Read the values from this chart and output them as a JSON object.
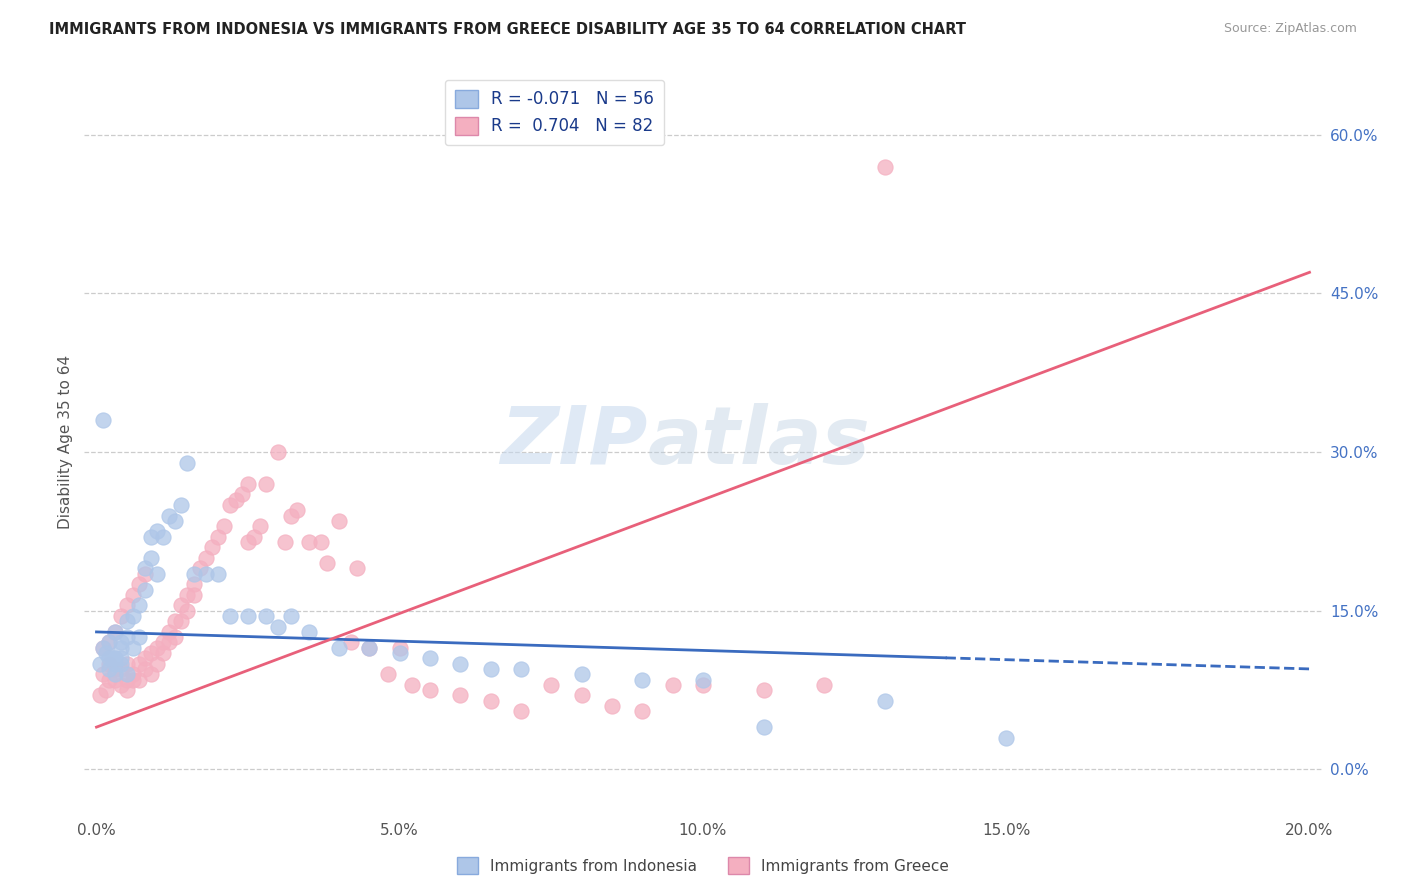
{
  "title": "IMMIGRANTS FROM INDONESIA VS IMMIGRANTS FROM GREECE DISABILITY AGE 35 TO 64 CORRELATION CHART",
  "source": "Source: ZipAtlas.com",
  "xlabel_ticks": [
    "0.0%",
    "5.0%",
    "10.0%",
    "15.0%",
    "20.0%"
  ],
  "xlabel_tick_vals": [
    0.0,
    0.05,
    0.1,
    0.15,
    0.2
  ],
  "ylabel_ticks": [
    "0.0%",
    "15.0%",
    "30.0%",
    "45.0%",
    "60.0%"
  ],
  "ylabel_tick_vals": [
    0.0,
    0.15,
    0.3,
    0.45,
    0.6
  ],
  "xlim": [
    -0.002,
    0.202
  ],
  "ylim": [
    -0.04,
    0.66
  ],
  "ylabel": "Disability Age 35 to 64",
  "legend_labels": [
    "Immigrants from Indonesia",
    "Immigrants from Greece"
  ],
  "blue_R": "-0.071",
  "blue_N": "56",
  "pink_R": "0.704",
  "pink_N": "82",
  "blue_color": "#aec6e8",
  "pink_color": "#f4afc0",
  "blue_line_color": "#3a6bbf",
  "pink_line_color": "#e8607a",
  "watermark_zip": "ZIP",
  "watermark_atlas": "atlas",
  "blue_line_x0": 0.0,
  "blue_line_y0": 0.13,
  "blue_line_x1": 0.2,
  "blue_line_y1": 0.095,
  "pink_line_x0": 0.0,
  "pink_line_y0": 0.04,
  "pink_line_x1": 0.2,
  "pink_line_y1": 0.47,
  "blue_scatter_x": [
    0.0005,
    0.001,
    0.0015,
    0.002,
    0.002,
    0.0025,
    0.003,
    0.003,
    0.003,
    0.004,
    0.004,
    0.004,
    0.005,
    0.005,
    0.005,
    0.006,
    0.006,
    0.007,
    0.007,
    0.008,
    0.008,
    0.009,
    0.009,
    0.01,
    0.01,
    0.011,
    0.012,
    0.013,
    0.014,
    0.015,
    0.016,
    0.018,
    0.02,
    0.022,
    0.025,
    0.028,
    0.03,
    0.032,
    0.035,
    0.04,
    0.045,
    0.05,
    0.055,
    0.06,
    0.065,
    0.07,
    0.08,
    0.09,
    0.1,
    0.11,
    0.13,
    0.15,
    0.001,
    0.002,
    0.003,
    0.004
  ],
  "blue_scatter_y": [
    0.1,
    0.115,
    0.11,
    0.12,
    0.095,
    0.105,
    0.13,
    0.1,
    0.09,
    0.115,
    0.12,
    0.1,
    0.14,
    0.125,
    0.09,
    0.145,
    0.115,
    0.155,
    0.125,
    0.17,
    0.19,
    0.2,
    0.22,
    0.185,
    0.225,
    0.22,
    0.24,
    0.235,
    0.25,
    0.29,
    0.185,
    0.185,
    0.185,
    0.145,
    0.145,
    0.145,
    0.135,
    0.145,
    0.13,
    0.115,
    0.115,
    0.11,
    0.105,
    0.1,
    0.095,
    0.095,
    0.09,
    0.085,
    0.085,
    0.04,
    0.065,
    0.03,
    0.33,
    0.105,
    0.105,
    0.105
  ],
  "pink_scatter_x": [
    0.0005,
    0.001,
    0.0015,
    0.002,
    0.002,
    0.003,
    0.003,
    0.004,
    0.004,
    0.005,
    0.005,
    0.005,
    0.006,
    0.006,
    0.007,
    0.007,
    0.008,
    0.008,
    0.009,
    0.009,
    0.01,
    0.01,
    0.011,
    0.011,
    0.012,
    0.012,
    0.013,
    0.013,
    0.014,
    0.014,
    0.015,
    0.015,
    0.016,
    0.016,
    0.017,
    0.018,
    0.019,
    0.02,
    0.021,
    0.022,
    0.023,
    0.024,
    0.025,
    0.025,
    0.026,
    0.027,
    0.028,
    0.03,
    0.031,
    0.032,
    0.033,
    0.035,
    0.037,
    0.038,
    0.04,
    0.042,
    0.043,
    0.045,
    0.048,
    0.05,
    0.052,
    0.055,
    0.06,
    0.065,
    0.07,
    0.075,
    0.08,
    0.085,
    0.09,
    0.095,
    0.1,
    0.11,
    0.12,
    0.001,
    0.002,
    0.003,
    0.004,
    0.005,
    0.006,
    0.007,
    0.008,
    0.13
  ],
  "pink_scatter_y": [
    0.07,
    0.09,
    0.075,
    0.1,
    0.085,
    0.085,
    0.095,
    0.095,
    0.08,
    0.1,
    0.085,
    0.075,
    0.085,
    0.09,
    0.1,
    0.085,
    0.105,
    0.095,
    0.11,
    0.09,
    0.115,
    0.1,
    0.12,
    0.11,
    0.13,
    0.12,
    0.14,
    0.125,
    0.155,
    0.14,
    0.165,
    0.15,
    0.175,
    0.165,
    0.19,
    0.2,
    0.21,
    0.22,
    0.23,
    0.25,
    0.255,
    0.26,
    0.27,
    0.215,
    0.22,
    0.23,
    0.27,
    0.3,
    0.215,
    0.24,
    0.245,
    0.215,
    0.215,
    0.195,
    0.235,
    0.12,
    0.19,
    0.115,
    0.09,
    0.115,
    0.08,
    0.075,
    0.07,
    0.065,
    0.055,
    0.08,
    0.07,
    0.06,
    0.055,
    0.08,
    0.08,
    0.075,
    0.08,
    0.115,
    0.12,
    0.13,
    0.145,
    0.155,
    0.165,
    0.175,
    0.185,
    0.57
  ]
}
